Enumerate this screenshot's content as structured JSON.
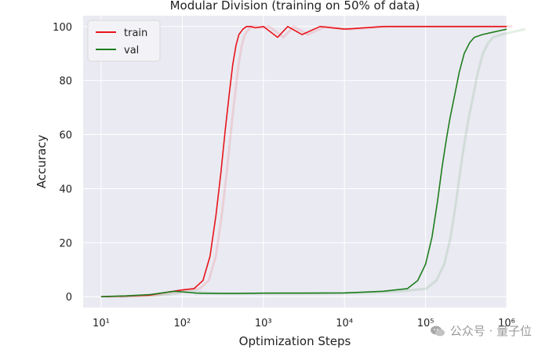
{
  "chart_data": {
    "type": "line",
    "title": "Modular Division (training on 50% of data)",
    "xlabel": "Optimization Steps",
    "ylabel": "Accuracy",
    "xscale": "log",
    "xlim": [
      6,
      1000000
    ],
    "ylim": [
      -4,
      104
    ],
    "x_tick_labels": [
      "10¹",
      "10²",
      "10³",
      "10⁴",
      "10⁵",
      "10⁶"
    ],
    "x_tick_values": [
      10,
      100,
      1000,
      10000,
      100000,
      1000000
    ],
    "y_ticks": [
      0,
      20,
      40,
      60,
      80,
      100
    ],
    "grid": true,
    "legend_position": "top-left",
    "series": [
      {
        "name": "train",
        "color": "#e8141a",
        "x": [
          10,
          20,
          40,
          60,
          100,
          140,
          180,
          220,
          260,
          300,
          340,
          380,
          420,
          460,
          500,
          560,
          620,
          700,
          800,
          1000,
          1500,
          2000,
          3000,
          5000,
          10000,
          30000,
          100000,
          300000,
          1000000
        ],
        "y": [
          0,
          0.2,
          0.6,
          1.5,
          2.5,
          3,
          6,
          15,
          30,
          46,
          62,
          75,
          86,
          93,
          97,
          99,
          100,
          100,
          99.5,
          100,
          96,
          100,
          97,
          100,
          99,
          100,
          100,
          100,
          100
        ]
      },
      {
        "name": "val",
        "color": "#1e7d1e",
        "x": [
          10,
          20,
          40,
          60,
          80,
          100,
          150,
          200,
          500,
          1000,
          3000,
          10000,
          30000,
          60000,
          80000,
          100000,
          120000,
          140000,
          160000,
          180000,
          200000,
          230000,
          260000,
          300000,
          350000,
          400000,
          500000,
          700000,
          1000000
        ],
        "y": [
          0,
          0.3,
          0.8,
          1.5,
          2.0,
          1.8,
          1.3,
          1.2,
          1.2,
          1.3,
          1.3,
          1.4,
          2,
          3,
          6,
          12,
          22,
          35,
          48,
          58,
          66,
          75,
          83,
          90,
          94,
          96,
          97,
          98,
          99
        ]
      }
    ]
  },
  "watermark": {
    "text": "公众号 · 量子位",
    "icon": "wechat-icon"
  }
}
